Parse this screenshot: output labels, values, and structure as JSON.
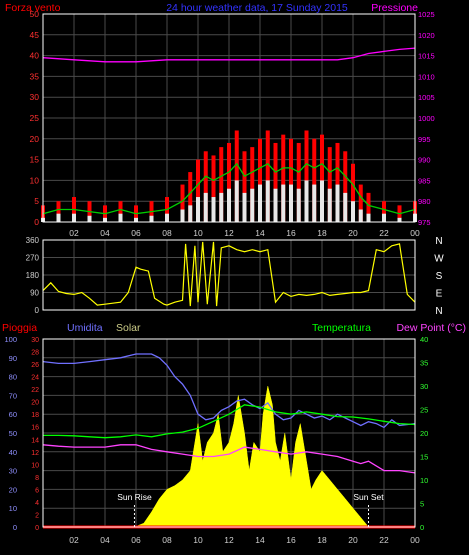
{
  "title_top": {
    "left": "Forza vento",
    "center": "24 hour weather data, 17 Sunday 2015",
    "right": "Pressione"
  },
  "colors": {
    "wind_gust": "#ff0000",
    "wind_avg": "#00cc00",
    "wind_speed": "#e8e8e8",
    "pressure": "#ff00ff",
    "wind_dir": "#ffff00",
    "rain": "#ff0000",
    "humidity": "#7070ff",
    "solar": "#ffff00",
    "temperature": "#00ff00",
    "dew_point": "#ff44ff",
    "axis": "#ffffff",
    "grid": "#4a4a4a"
  },
  "chart_data": [
    {
      "type": "area",
      "title": "24 hour weather data, 17 Sunday 2015",
      "xlabel": "",
      "ylabel_left": "Forza vento",
      "ylabel_right": "Pressione",
      "x_ticks": [
        "02",
        "04",
        "06",
        "08",
        "10",
        "12",
        "14",
        "16",
        "18",
        "20",
        "22",
        "00"
      ],
      "xlim": [
        0,
        24
      ],
      "ylim_left": [
        0,
        50
      ],
      "ylim_right": [
        975,
        1025
      ],
      "y_ticks_left": [
        0,
        5,
        10,
        15,
        20,
        25,
        30,
        35,
        40,
        45,
        50
      ],
      "y_ticks_right": [
        975,
        980,
        985,
        990,
        995,
        1000,
        1005,
        1010,
        1015,
        1020,
        1025
      ],
      "series": [
        {
          "axis": "right",
          "kind": "line",
          "color_key": "pressure",
          "x": [
            0,
            2,
            4,
            6,
            8,
            10,
            12,
            14,
            16,
            18,
            19,
            20,
            21,
            22,
            23,
            24
          ],
          "y": [
            1014.5,
            1014.0,
            1013.5,
            1013.5,
            1014.0,
            1014.0,
            1014.0,
            1014.0,
            1014.0,
            1014.0,
            1014.0,
            1014.5,
            1015.5,
            1016.0,
            1016.5,
            1016.8
          ]
        },
        {
          "kind": "bars",
          "color_key": "wind_gust",
          "x": [
            0,
            1,
            2,
            3,
            4,
            5,
            6,
            7,
            8,
            9,
            9.5,
            10,
            10.5,
            11,
            11.5,
            12,
            12.5,
            13,
            13.5,
            14,
            14.5,
            15,
            15.5,
            16,
            16.5,
            17,
            17.5,
            18,
            18.5,
            19,
            19.5,
            20,
            20.5,
            21,
            22,
            23,
            24
          ],
          "y": [
            4,
            5,
            6,
            5,
            4,
            5,
            4,
            5,
            6,
            9,
            12,
            15,
            17,
            16,
            18,
            19,
            22,
            17,
            18,
            20,
            22,
            19,
            21,
            20,
            19,
            22,
            20,
            21,
            18,
            19,
            17,
            14,
            9,
            7,
            5,
            4,
            5
          ]
        },
        {
          "kind": "line",
          "color_key": "wind_avg",
          "x": [
            0,
            1,
            2,
            3,
            4,
            5,
            6,
            7,
            8,
            9,
            9.5,
            10,
            10.5,
            11,
            11.5,
            12,
            12.5,
            13,
            13.5,
            14,
            14.5,
            15,
            15.5,
            16,
            16.5,
            17,
            17.5,
            18,
            18.5,
            19,
            19.5,
            20,
            20.5,
            21,
            22,
            23,
            24
          ],
          "y": [
            2,
            3,
            3,
            2.5,
            2,
            3,
            2,
            2.5,
            3,
            5,
            7,
            9,
            11,
            10,
            11,
            12,
            14,
            11,
            12,
            13,
            14,
            12,
            13,
            13,
            12,
            14,
            13,
            14,
            12,
            13,
            11,
            9,
            6,
            4,
            3,
            2,
            3
          ]
        },
        {
          "kind": "bars",
          "color_key": "wind_speed",
          "x": [
            0,
            1,
            2,
            3,
            4,
            5,
            6,
            7,
            8,
            9,
            9.5,
            10,
            10.5,
            11,
            11.5,
            12,
            12.5,
            13,
            13.5,
            14,
            14.5,
            15,
            15.5,
            16,
            16.5,
            17,
            17.5,
            18,
            18.5,
            19,
            19.5,
            20,
            20.5,
            21,
            22,
            23,
            24
          ],
          "y": [
            1,
            2,
            2,
            1.5,
            1,
            2,
            1,
            1.5,
            2,
            3,
            4,
            6,
            7,
            6,
            7,
            8,
            10,
            7,
            8,
            9,
            10,
            8,
            9,
            9,
            8,
            10,
            9,
            10,
            8,
            9,
            7,
            5,
            3,
            2,
            2,
            1,
            2
          ]
        }
      ]
    },
    {
      "type": "line",
      "title": "",
      "ylabel_right": [
        "N",
        "W",
        "S",
        "E",
        "N"
      ],
      "xlim": [
        0,
        24
      ],
      "ylim": [
        0,
        360
      ],
      "y_ticks": [
        0,
        90,
        180,
        270,
        360
      ],
      "series": [
        {
          "kind": "line",
          "color_key": "wind_dir",
          "x": [
            0,
            0.5,
            1,
            1.5,
            2,
            2.5,
            3,
            3.5,
            4,
            4.5,
            5,
            5.5,
            6,
            6.3,
            6.8,
            7.2,
            7.8,
            8,
            8.5,
            9,
            9.2,
            9.5,
            9.8,
            10,
            10.3,
            10.6,
            11,
            11.2,
            11.5,
            12,
            12.5,
            13,
            13.5,
            14,
            14.5,
            15,
            15.5,
            16,
            16.5,
            17,
            17.5,
            18,
            18.5,
            19,
            19.5,
            20,
            20.5,
            21,
            21.5,
            22,
            22.5,
            23,
            23.5,
            24
          ],
          "y": [
            100,
            140,
            95,
            85,
            80,
            90,
            60,
            25,
            30,
            35,
            40,
            90,
            220,
            210,
            200,
            60,
            30,
            25,
            40,
            50,
            340,
            20,
            330,
            40,
            350,
            30,
            350,
            20,
            320,
            330,
            310,
            300,
            310,
            300,
            310,
            40,
            90,
            70,
            80,
            75,
            80,
            90,
            75,
            80,
            85,
            90,
            90,
            100,
            310,
            300,
            330,
            340,
            80,
            40
          ]
        }
      ]
    },
    {
      "type": "line",
      "title": "",
      "labels": {
        "rain": "Pioggia",
        "humidity": "Umidita",
        "solar": "Solar",
        "temperature": "Temperatura",
        "dew_point": "Dew Point (°C)"
      },
      "x_ticks": [
        "02",
        "04",
        "06",
        "08",
        "10",
        "12",
        "14",
        "16",
        "18",
        "20",
        "22",
        "00"
      ],
      "xlim": [
        0,
        24
      ],
      "ylim_humidity": [
        0,
        100
      ],
      "y_ticks_humidity": [
        0,
        10,
        20,
        30,
        40,
        50,
        60,
        70,
        80,
        90,
        100
      ],
      "ylim_rain": [
        0,
        30
      ],
      "y_ticks_rain": [
        0,
        2,
        4,
        6,
        8,
        10,
        12,
        14,
        16,
        18,
        20,
        22,
        24,
        26,
        28,
        30
      ],
      "ylim_temp": [
        0,
        40
      ],
      "y_ticks_temp": [
        0,
        5,
        10,
        15,
        20,
        25,
        30,
        35,
        40
      ],
      "annotations": [
        {
          "text": "Sun Rise",
          "x": 5.9
        },
        {
          "text": "Sun Set",
          "x": 21.0
        }
      ],
      "series": [
        {
          "name": "Solar",
          "kind": "area",
          "axis": "humidity",
          "color_key": "solar",
          "x": [
            0,
            5.9,
            6.5,
            7,
            7.5,
            8,
            8.5,
            9,
            9.5,
            9.8,
            10,
            10.3,
            10.6,
            11,
            11.3,
            11.6,
            12,
            12.3,
            12.6,
            13,
            13.3,
            13.6,
            14,
            14.2,
            14.5,
            14.8,
            15,
            15.3,
            15.6,
            16,
            16.3,
            16.6,
            17,
            17.3,
            17.6,
            18,
            18.5,
            19,
            19.5,
            20,
            20.5,
            21,
            24
          ],
          "y": [
            0,
            0,
            2,
            8,
            15,
            20,
            22,
            25,
            30,
            45,
            55,
            35,
            45,
            50,
            60,
            40,
            45,
            55,
            70,
            50,
            30,
            45,
            40,
            60,
            75,
            65,
            45,
            35,
            50,
            25,
            45,
            55,
            35,
            20,
            25,
            30,
            25,
            20,
            15,
            10,
            5,
            0,
            0
          ]
        },
        {
          "name": "Umidita",
          "kind": "line",
          "axis": "humidity",
          "color_key": "humidity",
          "x": [
            0,
            1,
            2,
            3,
            4,
            5,
            6,
            7,
            7.5,
            8,
            8.5,
            9,
            9.5,
            10,
            10.5,
            11,
            11.5,
            12,
            12.5,
            13,
            13.5,
            14,
            14.5,
            15,
            15.5,
            16,
            16.5,
            17,
            17.5,
            18,
            18.5,
            19,
            19.5,
            20,
            20.5,
            21,
            21.5,
            22,
            22.5,
            23,
            24
          ],
          "y": [
            88,
            87,
            87,
            88,
            89,
            90,
            92,
            92,
            90,
            86,
            80,
            76,
            70,
            60,
            57,
            58,
            62,
            64,
            67,
            68,
            65,
            63,
            66,
            60,
            57,
            58,
            62,
            60,
            58,
            59,
            57,
            60,
            58,
            56,
            54,
            56,
            55,
            53,
            57,
            54,
            55
          ]
        },
        {
          "name": "Temperatura",
          "kind": "line",
          "axis": "temp",
          "color_key": "temperature",
          "x": [
            0,
            1,
            2,
            3,
            4,
            5,
            6,
            7,
            8,
            9,
            10,
            11,
            12,
            12.5,
            13,
            14,
            15,
            16,
            17,
            18,
            19,
            20,
            21,
            22,
            23,
            24
          ],
          "y": [
            19.5,
            19.5,
            19.4,
            19.2,
            19.0,
            19.2,
            19.6,
            19.2,
            19.8,
            20.2,
            21,
            22.5,
            24,
            25,
            26,
            25.5,
            24.5,
            24,
            24.5,
            24,
            23.5,
            23.4,
            23,
            22.5,
            22,
            21.8
          ]
        },
        {
          "name": "Dew Point",
          "kind": "line",
          "axis": "temp",
          "color_key": "dew_point",
          "x": [
            0,
            1,
            2,
            3,
            4,
            5,
            6,
            7,
            8,
            9,
            10,
            11,
            12,
            13,
            14,
            15,
            16,
            17,
            18,
            19,
            20,
            20.5,
            21,
            21.5,
            22,
            23,
            24
          ],
          "y": [
            17.5,
            17.2,
            17.0,
            17.0,
            17.0,
            17.5,
            17.5,
            16.5,
            16.0,
            15.5,
            15.0,
            15.0,
            15.5,
            17.0,
            16.5,
            16.0,
            15.5,
            16.0,
            15.5,
            15.0,
            14.0,
            13.5,
            14.0,
            13.0,
            12.0,
            12.0,
            11.5
          ]
        },
        {
          "name": "Pioggia",
          "kind": "line",
          "axis": "rain",
          "color_key": "rain",
          "x": [
            0,
            24
          ],
          "y": [
            0,
            0
          ]
        }
      ]
    }
  ]
}
